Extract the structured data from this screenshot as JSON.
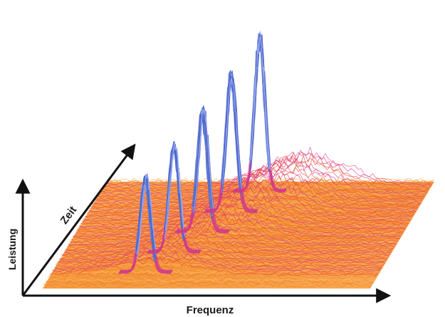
{
  "chart_data": {
    "type": "3d-waterfall-spectrum",
    "title": "",
    "axes": {
      "x_label": "Frequenz",
      "y_label": "Leistung",
      "z_label": "Zeit"
    },
    "tick_labels": [],
    "legend": [],
    "grid": false,
    "peaks": [
      {
        "order": 1,
        "relative_height": 0.55
      },
      {
        "order": 2,
        "relative_height": 0.62
      },
      {
        "order": 3,
        "relative_height": 0.7
      },
      {
        "order": 4,
        "relative_height": 0.8
      },
      {
        "order": 5,
        "relative_height": 0.9
      }
    ],
    "colormap": {
      "low": "#f7931e",
      "mid": "#e8463a",
      "upper": "#d63a8f",
      "high": "#3f6fd0",
      "peak": "#8fb4ff"
    }
  }
}
